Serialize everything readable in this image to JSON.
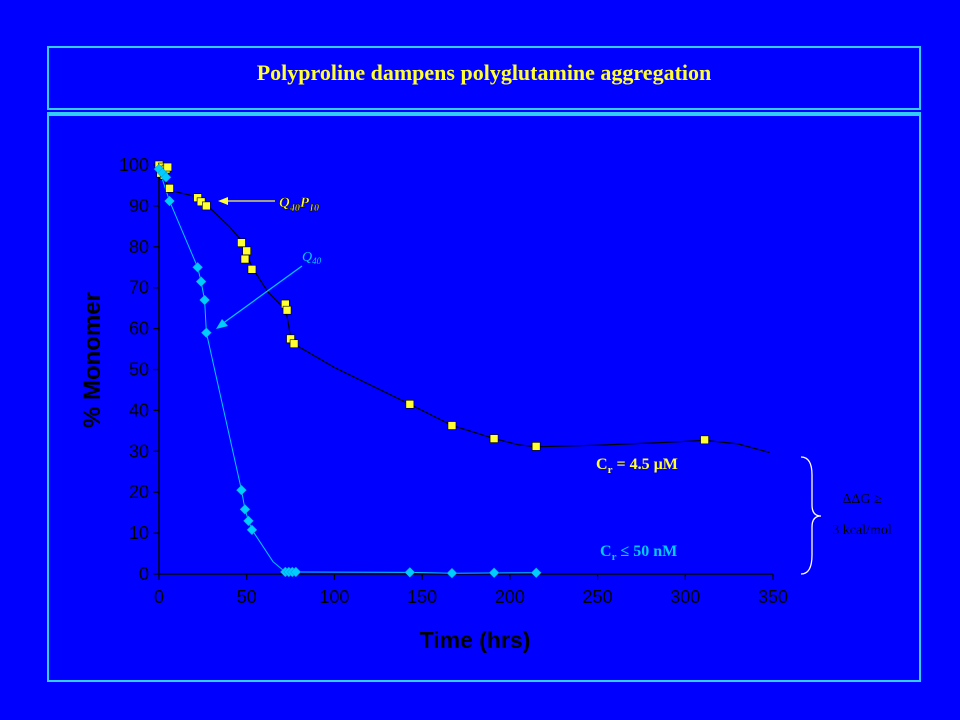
{
  "slide": {
    "title": "Polyproline dampens polyglutamine aggregation"
  },
  "chart_data": {
    "type": "scatter",
    "title": "",
    "xlabel": "Time (hrs)",
    "ylabel": "% Monomer",
    "xlim": [
      0,
      350
    ],
    "ylim": [
      0,
      100
    ],
    "xticks": [
      "0",
      "50",
      "100",
      "150",
      "200",
      "250",
      "300",
      "350"
    ],
    "yticks": [
      "0",
      "10",
      "20",
      "30",
      "40",
      "50",
      "60",
      "70",
      "80",
      "90",
      "100"
    ],
    "grid": false,
    "legend": "none",
    "series": [
      {
        "name": "Q40P10",
        "color": "#ffff33",
        "marker": "square",
        "points": [
          [
            0,
            100
          ],
          [
            1,
            98
          ],
          [
            2,
            99.5
          ],
          [
            3,
            97.5
          ],
          [
            4,
            99
          ],
          [
            5,
            99.5
          ],
          [
            6,
            94.3
          ],
          [
            22,
            92
          ],
          [
            24,
            91
          ],
          [
            27,
            90
          ],
          [
            47,
            81
          ],
          [
            50,
            79
          ],
          [
            49,
            77
          ],
          [
            53,
            74.5
          ],
          [
            72,
            66
          ],
          [
            73,
            64.5
          ],
          [
            75,
            57.5
          ],
          [
            77,
            56.3
          ],
          [
            143,
            41.5
          ],
          [
            167,
            36.3
          ],
          [
            191,
            33.1
          ],
          [
            215,
            31.2
          ],
          [
            311,
            32.8
          ]
        ],
        "curve": [
          [
            0,
            100
          ],
          [
            6,
            93.8
          ],
          [
            22,
            92.2
          ],
          [
            27,
            90.3
          ],
          [
            40,
            85
          ],
          [
            47,
            81.5
          ],
          [
            53,
            75
          ],
          [
            62,
            69
          ],
          [
            70,
            65.5
          ],
          [
            73,
            63
          ],
          [
            75,
            58
          ],
          [
            78,
            56
          ],
          [
            100,
            50.5
          ],
          [
            143,
            41.5
          ],
          [
            167,
            36.3
          ],
          [
            191,
            33.1
          ],
          [
            205,
            31.6
          ],
          [
            215,
            31.1
          ],
          [
            250,
            31.5
          ],
          [
            290,
            32.2
          ],
          [
            311,
            32.7
          ],
          [
            330,
            31.8
          ],
          [
            348,
            29.7
          ]
        ],
        "annotation": "Cr = 4.5 µM"
      },
      {
        "name": "Q40",
        "color": "#00ccff",
        "marker": "diamond",
        "points": [
          [
            0,
            99
          ],
          [
            2,
            98
          ],
          [
            4,
            97
          ],
          [
            6,
            91.2
          ],
          [
            22,
            75
          ],
          [
            24,
            71.5
          ],
          [
            26,
            67
          ],
          [
            27,
            59
          ],
          [
            47,
            20.5
          ],
          [
            49,
            15.8
          ],
          [
            51,
            13
          ],
          [
            53,
            10.8
          ],
          [
            72,
            0.5
          ],
          [
            74,
            0.5
          ],
          [
            76,
            0.5
          ],
          [
            78,
            0.5
          ],
          [
            143,
            0.4
          ],
          [
            167,
            0.2
          ],
          [
            191,
            0.3
          ],
          [
            215,
            0.3
          ]
        ],
        "curve": [
          [
            0,
            99
          ],
          [
            6,
            91.2
          ],
          [
            22,
            75
          ],
          [
            24,
            71.5
          ],
          [
            26,
            67
          ],
          [
            27,
            59
          ],
          [
            47,
            20.5
          ],
          [
            49,
            15.8
          ],
          [
            51,
            13
          ],
          [
            53,
            10.8
          ],
          [
            65,
            3
          ],
          [
            72,
            0.5
          ],
          [
            78,
            0.5
          ],
          [
            143,
            0.4
          ],
          [
            167,
            0.2
          ],
          [
            215,
            0.3
          ]
        ],
        "annotation": "Cr ≤ 50 nM"
      }
    ],
    "labels": {
      "q40p10_main": "Q",
      "q40p10_sub1": "40",
      "q40p10_mid": "P",
      "q40p10_sub2": "10",
      "q40_main": "Q",
      "q40_sub": "40",
      "cr_high_main": "C",
      "cr_high_sub": "r",
      "cr_high_rest": " = 4.5 µM",
      "cr_low_main": "C",
      "cr_low_sub": "r",
      "cr_low_rest": " ≤ 50 nM",
      "ddg_line1": "ΔΔG ≥",
      "ddg_line2": "3 kcal/mol"
    }
  }
}
